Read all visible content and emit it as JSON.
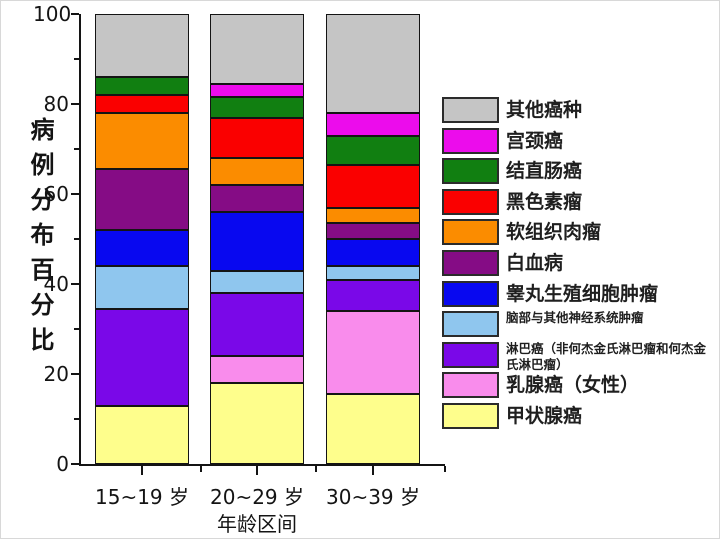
{
  "axes": {
    "y": {
      "label": "病例分布百分比",
      "ticks": [
        0,
        20,
        40,
        60,
        80,
        100
      ],
      "minor_ticks": [
        10,
        30,
        50,
        70,
        90
      ],
      "range": [
        0,
        100
      ]
    },
    "x": {
      "label": "年龄区间"
    }
  },
  "chart_data": {
    "type": "bar",
    "stacked": true,
    "title": "",
    "xlabel": "年龄区间",
    "ylabel": "病例分布百分比",
    "ylim": [
      0,
      100
    ],
    "grid": false,
    "legend_position": "right",
    "legend_order": "reverse-of-stacking-top-to-bottom",
    "categories": [
      "15~19 岁",
      "20~29 岁",
      "30~39 岁"
    ],
    "series": [
      {
        "name": "甲状腺癌",
        "color": "#FEFE8C",
        "values": [
          13,
          18,
          15.5
        ]
      },
      {
        "name": "乳腺癌（女性）",
        "color": "#F98CEC",
        "values": [
          0,
          6,
          18.5
        ]
      },
      {
        "name": "淋巴癌（非何杰金氏淋巴瘤和何杰金氏淋巴瘤）",
        "color": "#7A08E8",
        "values": [
          21.5,
          14,
          7
        ]
      },
      {
        "name": "脑部与其他神经系统肿瘤",
        "color": "#8FC6EE",
        "values": [
          9.5,
          5,
          3
        ]
      },
      {
        "name": "睾丸生殖细胞肿瘤",
        "color": "#0808F0",
        "values": [
          8,
          13,
          6
        ]
      },
      {
        "name": "白血病",
        "color": "#850C85",
        "values": [
          13.5,
          6,
          3.5
        ]
      },
      {
        "name": "软组织肉瘤",
        "color": "#FB8C00",
        "values": [
          12.5,
          6,
          3.5
        ]
      },
      {
        "name": "黑色素瘤",
        "color": "#FA0000",
        "values": [
          4,
          9,
          9.5
        ]
      },
      {
        "name": "结直肠癌",
        "color": "#117F11",
        "values": [
          4,
          4.5,
          6.5
        ]
      },
      {
        "name": "宫颈癌",
        "color": "#EC0CEC",
        "values": [
          0,
          3,
          5
        ]
      },
      {
        "name": "其他癌种",
        "color": "#C5C5C5",
        "values": [
          14,
          15.5,
          22
        ]
      }
    ]
  }
}
